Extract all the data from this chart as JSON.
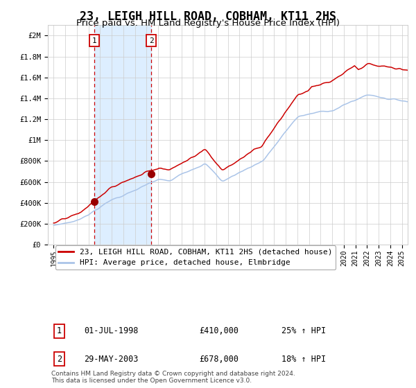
{
  "title": "23, LEIGH HILL ROAD, COBHAM, KT11 2HS",
  "subtitle": "Price paid vs. HM Land Registry's House Price Index (HPI)",
  "ylabel_ticks": [
    "£0",
    "£200K",
    "£400K",
    "£600K",
    "£800K",
    "£1M",
    "£1.2M",
    "£1.4M",
    "£1.6M",
    "£1.8M",
    "£2M"
  ],
  "ytick_values": [
    0,
    200000,
    400000,
    600000,
    800000,
    1000000,
    1200000,
    1400000,
    1600000,
    1800000,
    2000000
  ],
  "ylim": [
    0,
    2100000
  ],
  "xlim_start": 1994.5,
  "xlim_end": 2025.5,
  "sale1_date": 1998.5,
  "sale1_price": 410000,
  "sale2_date": 2003.4,
  "sale2_price": 678000,
  "hpi_line_color": "#aac4e8",
  "price_line_color": "#cc0000",
  "sale_dot_color": "#990000",
  "shade_color": "#ddeeff",
  "grid_color": "#cccccc",
  "bg_color": "#ffffff",
  "legend_label1": "23, LEIGH HILL ROAD, COBHAM, KT11 2HS (detached house)",
  "legend_label2": "HPI: Average price, detached house, Elmbridge",
  "table_row1": [
    "1",
    "01-JUL-1998",
    "£410,000",
    "25% ↑ HPI"
  ],
  "table_row2": [
    "2",
    "29-MAY-2003",
    "£678,000",
    "18% ↑ HPI"
  ],
  "footnote": "Contains HM Land Registry data © Crown copyright and database right 2024.\nThis data is licensed under the Open Government Licence v3.0.",
  "title_fontsize": 12,
  "subtitle_fontsize": 9.5
}
